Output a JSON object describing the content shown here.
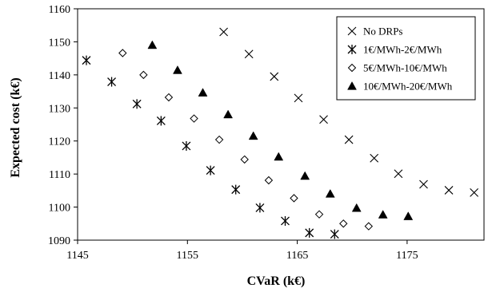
{
  "chart_data": {
    "type": "scatter",
    "title": "",
    "xlabel": "CVaR (k€)",
    "ylabel": "Expected cost (k€)",
    "xlim": [
      1145,
      1182
    ],
    "ylim": [
      1090,
      1160
    ],
    "xticks": [
      1145,
      1155,
      1165,
      1175
    ],
    "xtick_labels": [
      "1145",
      "1155",
      "1165",
      "1175"
    ],
    "yticks": [
      1090,
      1100,
      1110,
      1120,
      1130,
      1140,
      1150,
      1160
    ],
    "ytick_labels": [
      "1090",
      "1100",
      "1110",
      "1120",
      "1130",
      "1140",
      "1150",
      "1160"
    ],
    "grid": false,
    "legend_position": "top-right",
    "series": [
      {
        "name": "No DRPs",
        "marker": "x",
        "color": "#000000",
        "points": [
          [
            1158.3,
            1153.0
          ],
          [
            1160.6,
            1146.3
          ],
          [
            1162.9,
            1139.5
          ],
          [
            1165.1,
            1133.0
          ],
          [
            1167.4,
            1126.5
          ],
          [
            1169.7,
            1120.4
          ],
          [
            1172.0,
            1114.8
          ],
          [
            1174.2,
            1110.1
          ],
          [
            1176.5,
            1106.9
          ],
          [
            1178.8,
            1105.1
          ],
          [
            1181.1,
            1104.4
          ]
        ]
      },
      {
        "name": "1€/MWh-2€/MWh",
        "marker": "asterisk",
        "color": "#000000",
        "points": [
          [
            1145.8,
            1144.4
          ],
          [
            1148.1,
            1137.9
          ],
          [
            1150.4,
            1131.2
          ],
          [
            1152.6,
            1126.1
          ],
          [
            1154.9,
            1118.5
          ],
          [
            1157.1,
            1111.1
          ],
          [
            1159.4,
            1105.3
          ],
          [
            1161.6,
            1099.8
          ],
          [
            1163.9,
            1095.8
          ],
          [
            1166.1,
            1092.2
          ],
          [
            1168.4,
            1091.8
          ]
        ]
      },
      {
        "name": "5€/MWh-10€/MWh",
        "marker": "diamond",
        "color": "#000000",
        "points": [
          [
            1149.1,
            1146.6
          ],
          [
            1151.0,
            1140.0
          ],
          [
            1153.3,
            1133.2
          ],
          [
            1155.6,
            1126.8
          ],
          [
            1157.9,
            1120.4
          ],
          [
            1160.2,
            1114.4
          ],
          [
            1162.4,
            1108.1
          ],
          [
            1164.7,
            1102.7
          ],
          [
            1167.0,
            1097.8
          ],
          [
            1169.2,
            1095.0
          ],
          [
            1171.5,
            1094.2
          ]
        ]
      },
      {
        "name": "10€/MWh-20€/MWh",
        "marker": "triangle",
        "color": "#000000",
        "points": [
          [
            1151.8,
            1149.0
          ],
          [
            1154.1,
            1141.4
          ],
          [
            1156.4,
            1134.6
          ],
          [
            1158.7,
            1128.0
          ],
          [
            1161.0,
            1121.5
          ],
          [
            1163.3,
            1115.2
          ],
          [
            1165.7,
            1109.4
          ],
          [
            1168.0,
            1104.0
          ],
          [
            1170.4,
            1099.7
          ],
          [
            1172.8,
            1097.7
          ],
          [
            1175.1,
            1097.2
          ]
        ]
      }
    ]
  }
}
